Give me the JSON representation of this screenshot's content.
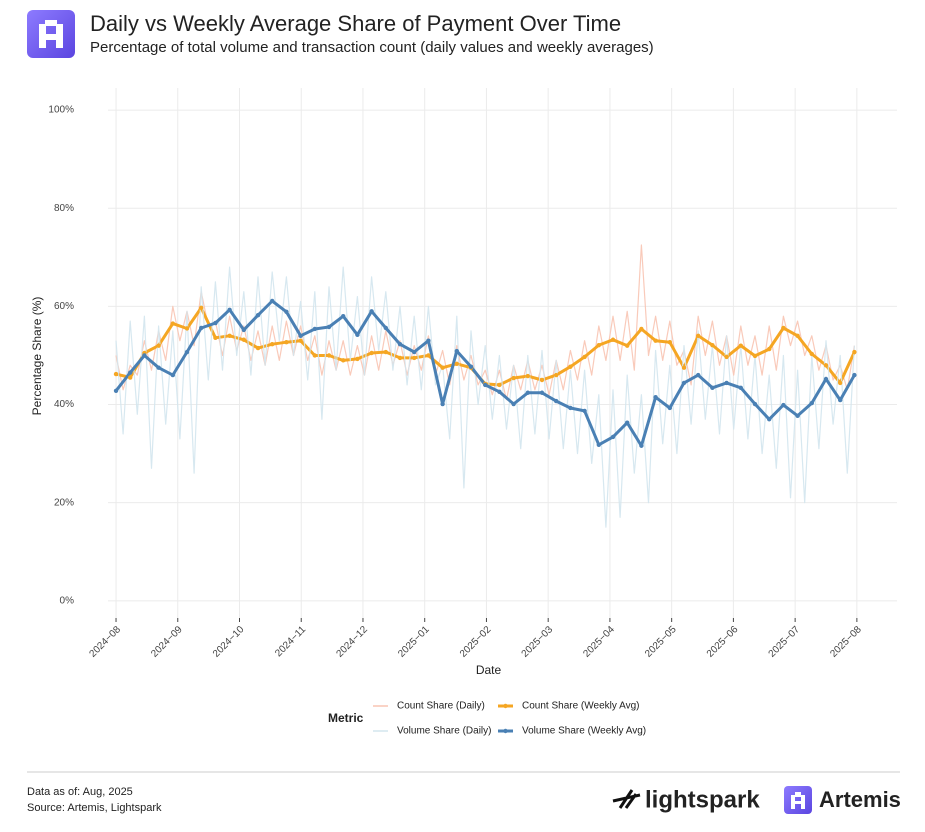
{
  "header": {
    "title": "Daily vs Weekly Average Share of Payment Over Time",
    "subtitle": "Percentage of total volume and transaction count (daily values and weekly averages)"
  },
  "chart_data": {
    "type": "line",
    "x_label": "Date",
    "y_label": "Percentage Share (%)",
    "legend_title": "Metric",
    "grid": true,
    "xlim": [
      -0.13,
      12.65
    ],
    "xticks": [
      {
        "value": 0,
        "label": "2024−08"
      },
      {
        "value": 1,
        "label": "2024−09"
      },
      {
        "value": 2,
        "label": "2024−10"
      },
      {
        "value": 3,
        "label": "2024−11"
      },
      {
        "value": 4,
        "label": "2024−12"
      },
      {
        "value": 5,
        "label": "2025−01"
      },
      {
        "value": 6,
        "label": "2025−02"
      },
      {
        "value": 7,
        "label": "2025−03"
      },
      {
        "value": 8,
        "label": "2025−04"
      },
      {
        "value": 9,
        "label": "2025−05"
      },
      {
        "value": 10,
        "label": "2025−06"
      },
      {
        "value": 11,
        "label": "2025−07"
      },
      {
        "value": 12,
        "label": "2025−08"
      }
    ],
    "ylim": [
      -3.5,
      104.5
    ],
    "yticks": [
      {
        "value": 0,
        "label": "0%"
      },
      {
        "value": 20,
        "label": "20%"
      },
      {
        "value": 40,
        "label": "40%"
      },
      {
        "value": 60,
        "label": "60%"
      },
      {
        "value": 80,
        "label": "80%"
      },
      {
        "value": 100,
        "label": "100%"
      }
    ],
    "series": [
      {
        "name": "Count Share (Daily)",
        "color": "#f8c4b2",
        "x": [
          0,
          0.115,
          0.23,
          0.345,
          0.46,
          0.575,
          0.69,
          0.805,
          0.92,
          1.035,
          1.15,
          1.265,
          1.38,
          1.495,
          1.61,
          1.725,
          1.84,
          1.955,
          2.07,
          2.185,
          2.3,
          2.415,
          2.53,
          2.645,
          2.76,
          2.875,
          2.99,
          3.105,
          3.22,
          3.335,
          3.45,
          3.565,
          3.68,
          3.795,
          3.91,
          4.025,
          4.14,
          4.255,
          4.37,
          4.485,
          4.6,
          4.715,
          4.83,
          4.945,
          5.06,
          5.175,
          5.29,
          5.405,
          5.52,
          5.635,
          5.75,
          5.865,
          5.98,
          6.095,
          6.21,
          6.325,
          6.44,
          6.555,
          6.67,
          6.785,
          6.9,
          7.015,
          7.13,
          7.245,
          7.36,
          7.475,
          7.59,
          7.705,
          7.82,
          7.935,
          8.05,
          8.165,
          8.28,
          8.395,
          8.51,
          8.625,
          8.74,
          8.855,
          8.97,
          9.085,
          9.2,
          9.315,
          9.43,
          9.545,
          9.66,
          9.775,
          9.89,
          10.005,
          10.12,
          10.235,
          10.35,
          10.465,
          10.58,
          10.695,
          10.81,
          10.925,
          11.04,
          11.155,
          11.27,
          11.385,
          11.5,
          11.615,
          11.73,
          11.845,
          11.96
        ],
        "values": [
          50,
          43,
          48,
          46,
          53,
          47,
          55,
          49,
          60,
          53,
          59,
          52,
          63,
          56,
          57,
          50,
          58,
          51,
          56,
          49,
          55,
          48,
          56,
          49,
          57,
          50,
          56,
          49,
          54,
          46,
          53,
          47,
          53,
          46,
          52,
          46,
          54,
          47,
          55,
          48,
          53,
          46,
          52,
          47,
          54,
          46,
          51,
          44,
          52,
          45,
          50,
          44,
          47,
          42,
          47,
          41,
          48,
          43,
          49,
          43,
          48,
          42,
          49,
          43,
          51,
          45,
          53,
          46,
          56,
          49,
          58,
          49,
          59,
          47,
          72.5,
          50,
          58,
          49,
          57,
          48,
          51,
          44,
          58,
          50,
          57,
          48,
          54,
          46,
          56,
          48,
          54,
          46,
          56,
          47,
          58,
          52,
          57,
          50,
          54,
          47,
          52,
          45,
          48,
          43,
          52
        ]
      },
      {
        "name": "Count Share (Weekly Avg)",
        "color": "#f5a623",
        "x": [
          0,
          0.23,
          0.46,
          0.69,
          0.92,
          1.15,
          1.38,
          1.61,
          1.84,
          2.07,
          2.3,
          2.53,
          2.76,
          2.99,
          3.22,
          3.45,
          3.68,
          3.91,
          4.14,
          4.37,
          4.6,
          4.83,
          5.06,
          5.29,
          5.52,
          5.75,
          5.98,
          6.21,
          6.44,
          6.67,
          6.9,
          7.13,
          7.36,
          7.59,
          7.82,
          8.05,
          8.28,
          8.51,
          8.74,
          8.97,
          9.2,
          9.43,
          9.66,
          9.89,
          10.12,
          10.35,
          10.58,
          10.81,
          11.04,
          11.27,
          11.5,
          11.73,
          11.96
        ],
        "values": [
          46.2,
          45.5,
          50.5,
          52,
          56.5,
          55.5,
          59.7,
          53.6,
          54,
          53.2,
          51.5,
          52.3,
          52.7,
          53,
          50,
          50,
          49,
          49.3,
          50.5,
          50.7,
          49.5,
          49.5,
          50,
          47.5,
          48.3,
          47.5,
          44.2,
          44,
          45.4,
          45.8,
          45,
          46,
          47.7,
          49.7,
          52.1,
          53.2,
          52,
          55.4,
          53,
          52.7,
          47.5,
          54,
          52.1,
          49.7,
          52,
          49.9,
          51.3,
          55.6,
          54,
          50.3,
          48,
          44.4,
          50.7
        ]
      },
      {
        "name": "Volume Share (Daily)",
        "color": "#d3e6ee",
        "x": [
          0,
          0.115,
          0.23,
          0.345,
          0.46,
          0.575,
          0.69,
          0.805,
          0.92,
          1.035,
          1.15,
          1.265,
          1.38,
          1.495,
          1.61,
          1.725,
          1.84,
          1.955,
          2.07,
          2.185,
          2.3,
          2.415,
          2.53,
          2.645,
          2.76,
          2.875,
          2.99,
          3.105,
          3.22,
          3.335,
          3.45,
          3.565,
          3.68,
          3.795,
          3.91,
          4.025,
          4.14,
          4.255,
          4.37,
          4.485,
          4.6,
          4.715,
          4.83,
          4.945,
          5.06,
          5.175,
          5.29,
          5.405,
          5.52,
          5.635,
          5.75,
          5.865,
          5.98,
          6.095,
          6.21,
          6.325,
          6.44,
          6.555,
          6.67,
          6.785,
          6.9,
          7.015,
          7.13,
          7.245,
          7.36,
          7.475,
          7.59,
          7.705,
          7.82,
          7.935,
          8.05,
          8.165,
          8.28,
          8.395,
          8.51,
          8.625,
          8.74,
          8.855,
          8.97,
          9.085,
          9.2,
          9.315,
          9.43,
          9.545,
          9.66,
          9.775,
          9.89,
          10.005,
          10.12,
          10.235,
          10.35,
          10.465,
          10.58,
          10.695,
          10.81,
          10.925,
          11.04,
          11.155,
          11.27,
          11.385,
          11.5,
          11.615,
          11.73,
          11.845,
          11.96
        ],
        "values": [
          53,
          34,
          57,
          38,
          58,
          27,
          56,
          36,
          55,
          33,
          59,
          26,
          64,
          45,
          65,
          47,
          68,
          50,
          63,
          46,
          66,
          48,
          67,
          53,
          66,
          50,
          61,
          45,
          63,
          37,
          64,
          47,
          68,
          49,
          62,
          46,
          66,
          51,
          63,
          47,
          60,
          44,
          58,
          43,
          60,
          44,
          48,
          33,
          58,
          23,
          55,
          40,
          52,
          37,
          50,
          35,
          48,
          31,
          50,
          34,
          51,
          33,
          49,
          31,
          47,
          30,
          47,
          28,
          42,
          15,
          43,
          17,
          46,
          26,
          42,
          20,
          51,
          32,
          48,
          30,
          52,
          36,
          55,
          37,
          52,
          34,
          54,
          35,
          52,
          33,
          50,
          30,
          46,
          27,
          50,
          21,
          47,
          20,
          50,
          31,
          53,
          36,
          50,
          26,
          52
        ]
      },
      {
        "name": "Volume Share (Weekly Avg)",
        "color": "#4a80b4",
        "x": [
          0,
          0.23,
          0.46,
          0.69,
          0.92,
          1.15,
          1.38,
          1.61,
          1.84,
          2.07,
          2.3,
          2.53,
          2.76,
          2.99,
          3.22,
          3.45,
          3.68,
          3.91,
          4.14,
          4.37,
          4.6,
          4.83,
          5.06,
          5.29,
          5.52,
          5.75,
          5.98,
          6.21,
          6.44,
          6.67,
          6.9,
          7.13,
          7.36,
          7.59,
          7.82,
          8.05,
          8.28,
          8.51,
          8.74,
          8.97,
          9.2,
          9.43,
          9.66,
          9.89,
          10.12,
          10.35,
          10.58,
          10.81,
          11.04,
          11.27,
          11.5,
          11.73,
          11.96
        ],
        "values": [
          42.8,
          46.5,
          50,
          47.5,
          46,
          50.7,
          55.6,
          56.6,
          59.3,
          55.2,
          58.2,
          61.1,
          58.9,
          54,
          55.4,
          55.8,
          58,
          54.2,
          59,
          55.6,
          52.3,
          50.7,
          53,
          40.1,
          50.9,
          47.7,
          44,
          42.6,
          40.1,
          42.4,
          42.4,
          40.7,
          39.3,
          38.7,
          31.8,
          33.4,
          36.3,
          31.6,
          41.5,
          39.3,
          44.4,
          46,
          43.4,
          44.4,
          43.4,
          40.1,
          37,
          39.9,
          37.7,
          40.3,
          45.2,
          40.9,
          46
        ]
      }
    ]
  },
  "footer": {
    "data_as_of": "Data as of: Aug, 2025",
    "source": "Source: Artemis, Lightspark",
    "brand_1": "lightspark",
    "brand_2": "Artemis"
  }
}
